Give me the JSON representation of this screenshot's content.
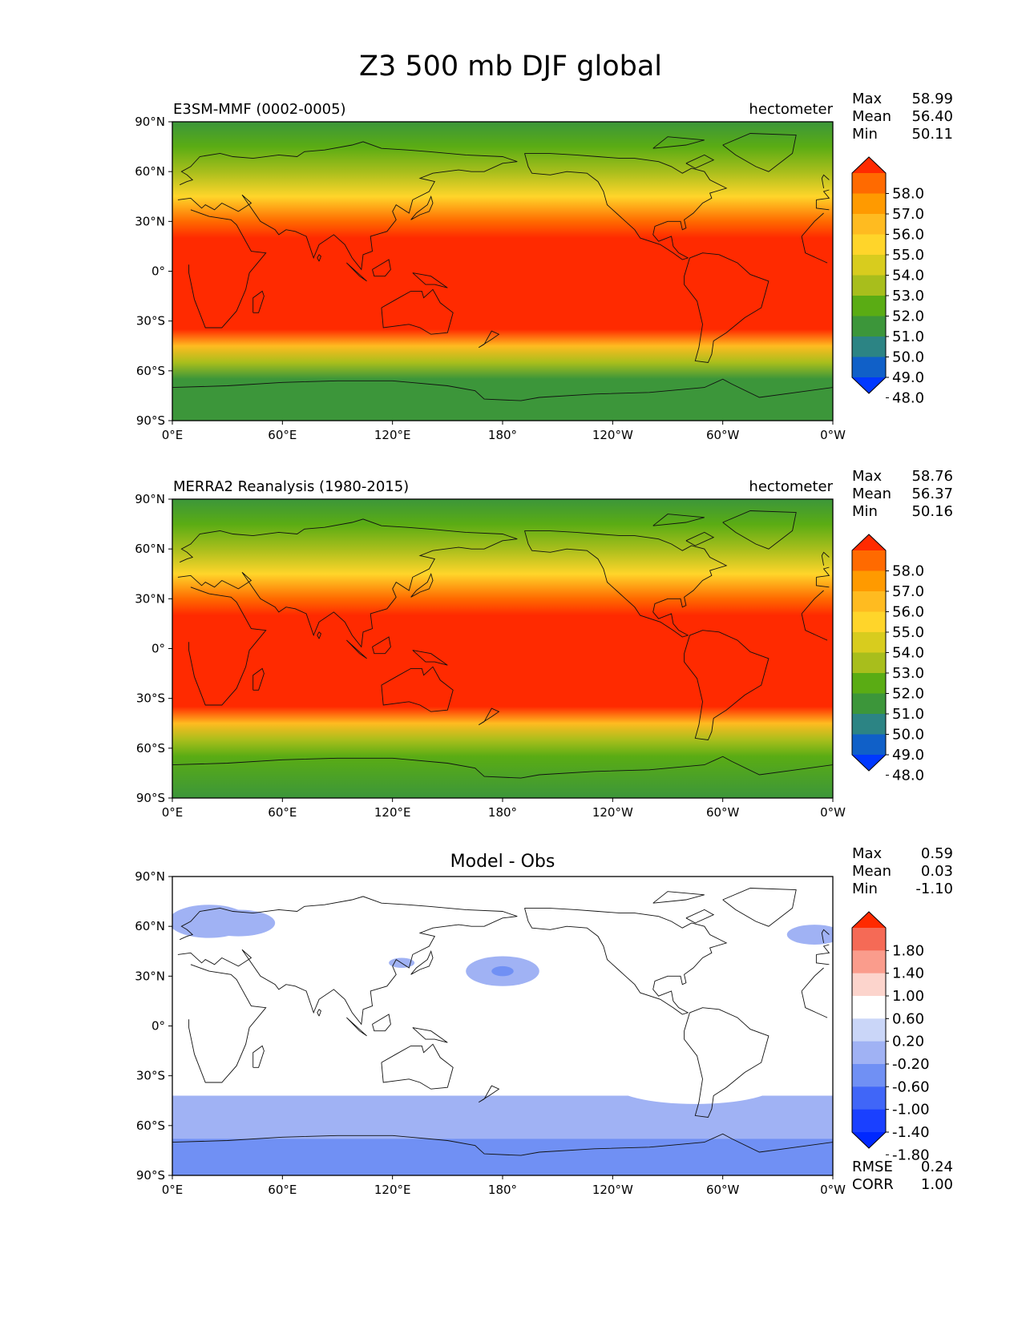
{
  "figure": {
    "title": "Z3 500 mb DJF global"
  },
  "chart_data": [
    {
      "type": "heatmap",
      "panel": "test",
      "title_left": "E3SM-MMF (0002-0005)",
      "title_right": "hectometer",
      "stats": [
        {
          "label": "Max",
          "value": "58.99"
        },
        {
          "label": "Mean",
          "value": "56.40"
        },
        {
          "label": "Min",
          "value": "50.11"
        }
      ],
      "xlabels": [
        "0°E",
        "60°E",
        "120°E",
        "180°",
        "120°W",
        "60°W",
        "0°W"
      ],
      "ylabels": [
        "90°N",
        "60°N",
        "30°N",
        "0°",
        "30°S",
        "60°S",
        "90°S"
      ],
      "colorbar": {
        "levels": [
          "58.0",
          "57.0",
          "56.0",
          "55.0",
          "54.0",
          "53.0",
          "52.0",
          "51.0",
          "50.0",
          "49.0",
          "48.0"
        ],
        "colors": [
          "#ff2a00",
          "#ff6a00",
          "#ff9a00",
          "#ffbb20",
          "#ffd52a",
          "#d8cc1e",
          "#a8be1c",
          "#5aac14",
          "#3c963a",
          "#2c8484",
          "#1060c8",
          "#0038ff"
        ]
      },
      "zonal_profile": [
        {
          "lat": 90,
          "value": 50.4
        },
        {
          "lat": 75,
          "value": 51.0
        },
        {
          "lat": 60,
          "value": 52.2
        },
        {
          "lat": 45,
          "value": 54.6
        },
        {
          "lat": 30,
          "value": 57.5
        },
        {
          "lat": 20,
          "value": 58.6
        },
        {
          "lat": 0,
          "value": 58.8
        },
        {
          "lat": -20,
          "value": 58.6
        },
        {
          "lat": -35,
          "value": 58.1
        },
        {
          "lat": -45,
          "value": 55.0
        },
        {
          "lat": -55,
          "value": 52.3
        },
        {
          "lat": -65,
          "value": 50.7
        },
        {
          "lat": -90,
          "value": 50.2
        }
      ]
    },
    {
      "type": "heatmap",
      "panel": "reference",
      "title_left": "MERRA2 Reanalysis (1980-2015)",
      "title_right": "hectometer",
      "stats": [
        {
          "label": "Max",
          "value": "58.76"
        },
        {
          "label": "Mean",
          "value": "56.37"
        },
        {
          "label": "Min",
          "value": "50.16"
        }
      ],
      "xlabels": [
        "0°E",
        "60°E",
        "120°E",
        "180°",
        "120°W",
        "60°W",
        "0°W"
      ],
      "ylabels": [
        "90°N",
        "60°N",
        "30°N",
        "0°",
        "30°S",
        "60°S",
        "90°S"
      ],
      "colorbar": {
        "levels": [
          "58.0",
          "57.0",
          "56.0",
          "55.0",
          "54.0",
          "53.0",
          "52.0",
          "51.0",
          "50.0",
          "49.0",
          "48.0"
        ],
        "colors": [
          "#ff2a00",
          "#ff6a00",
          "#ff9a00",
          "#ffbb20",
          "#ffd52a",
          "#d8cc1e",
          "#a8be1c",
          "#5aac14",
          "#3c963a",
          "#2c8484",
          "#1060c8",
          "#0038ff"
        ]
      },
      "zonal_profile": [
        {
          "lat": 90,
          "value": 50.4
        },
        {
          "lat": 75,
          "value": 51.0
        },
        {
          "lat": 60,
          "value": 52.2
        },
        {
          "lat": 45,
          "value": 54.6
        },
        {
          "lat": 30,
          "value": 57.5
        },
        {
          "lat": 20,
          "value": 58.6
        },
        {
          "lat": 0,
          "value": 58.7
        },
        {
          "lat": -20,
          "value": 58.5
        },
        {
          "lat": -35,
          "value": 58.0
        },
        {
          "lat": -45,
          "value": 55.2
        },
        {
          "lat": -55,
          "value": 52.8
        },
        {
          "lat": -65,
          "value": 51.3
        },
        {
          "lat": -90,
          "value": 50.8
        }
      ]
    },
    {
      "type": "heatmap",
      "panel": "difference",
      "title_center": "Model - Obs",
      "stats": [
        {
          "label": "Max",
          "value": "0.59"
        },
        {
          "label": "Mean",
          "value": "0.03"
        },
        {
          "label": "Min",
          "value": "-1.10"
        }
      ],
      "stats_bottom": [
        {
          "label": "RMSE",
          "value": "0.24"
        },
        {
          "label": "CORR",
          "value": "1.00"
        }
      ],
      "xlabels": [
        "0°E",
        "60°E",
        "120°E",
        "180°",
        "120°W",
        "60°W",
        "0°W"
      ],
      "ylabels": [
        "90°N",
        "60°N",
        "30°N",
        "0°",
        "30°S",
        "60°S",
        "90°S"
      ],
      "colorbar": {
        "levels": [
          "1.80",
          "1.40",
          "1.00",
          "0.60",
          "0.20",
          "-0.20",
          "-0.60",
          "-1.00",
          "-1.40",
          "-1.80"
        ],
        "colors": [
          "#ff2a00",
          "#f56a56",
          "#fa9c8c",
          "#fcd4cc",
          "#ffffff",
          "#cad6f8",
          "#a0b2f4",
          "#7090f4",
          "#4066f8",
          "#1a40ff",
          "#0028ff"
        ]
      },
      "anomalies": [
        {
          "lon": 20,
          "lat": 63,
          "rlon": 22,
          "rlat": 10,
          "value": -0.4
        },
        {
          "lon": 36,
          "lat": 62,
          "rlon": 20,
          "rlat": 8,
          "value": -0.4
        },
        {
          "lon": 85,
          "lat": 55,
          "rlon": 22,
          "rlat": 9,
          "value": 0.4
        },
        {
          "lon": 125,
          "lat": 38,
          "rlon": 7,
          "rlat": 3,
          "value": -0.4
        },
        {
          "lon": 175,
          "lat": 57,
          "rlon": 45,
          "rlat": 8,
          "value": 0.4
        },
        {
          "lon": 180,
          "lat": 33,
          "rlon": 20,
          "rlat": 9,
          "value": -0.4
        },
        {
          "lon": 180,
          "lat": 33,
          "rlon": 6,
          "rlat": 3,
          "value": -0.8
        },
        {
          "lon": 298,
          "lat": 67,
          "rlon": 28,
          "rlat": 10,
          "value": 0.4
        },
        {
          "lon": 335,
          "lat": 30,
          "rlon": 20,
          "rlat": 8,
          "value": 0.4
        },
        {
          "lon": 350,
          "lat": 55,
          "rlon": 15,
          "rlat": 6,
          "value": -0.4
        },
        {
          "lon": 45,
          "lat": -28,
          "rlon": 12,
          "rlat": 4,
          "value": 0.4
        },
        {
          "lon": 75,
          "lat": -35,
          "rlon": 18,
          "rlat": 7,
          "value": 0.4
        },
        {
          "lon": 150,
          "lat": -30,
          "rlon": 35,
          "rlat": 8,
          "value": 0.4
        },
        {
          "lon": 285,
          "lat": -35,
          "rlon": 45,
          "rlat": 12,
          "value": 0.4
        },
        {
          "lon": 300,
          "lat": -18,
          "rlon": 7,
          "rlat": 6,
          "value": 0.4
        }
      ],
      "southern_bands": [
        {
          "lat_from": -42,
          "lat_to": -90,
          "value": -0.4
        },
        {
          "lat_from": -68,
          "lat_to": -90,
          "value": -0.8
        }
      ]
    }
  ]
}
